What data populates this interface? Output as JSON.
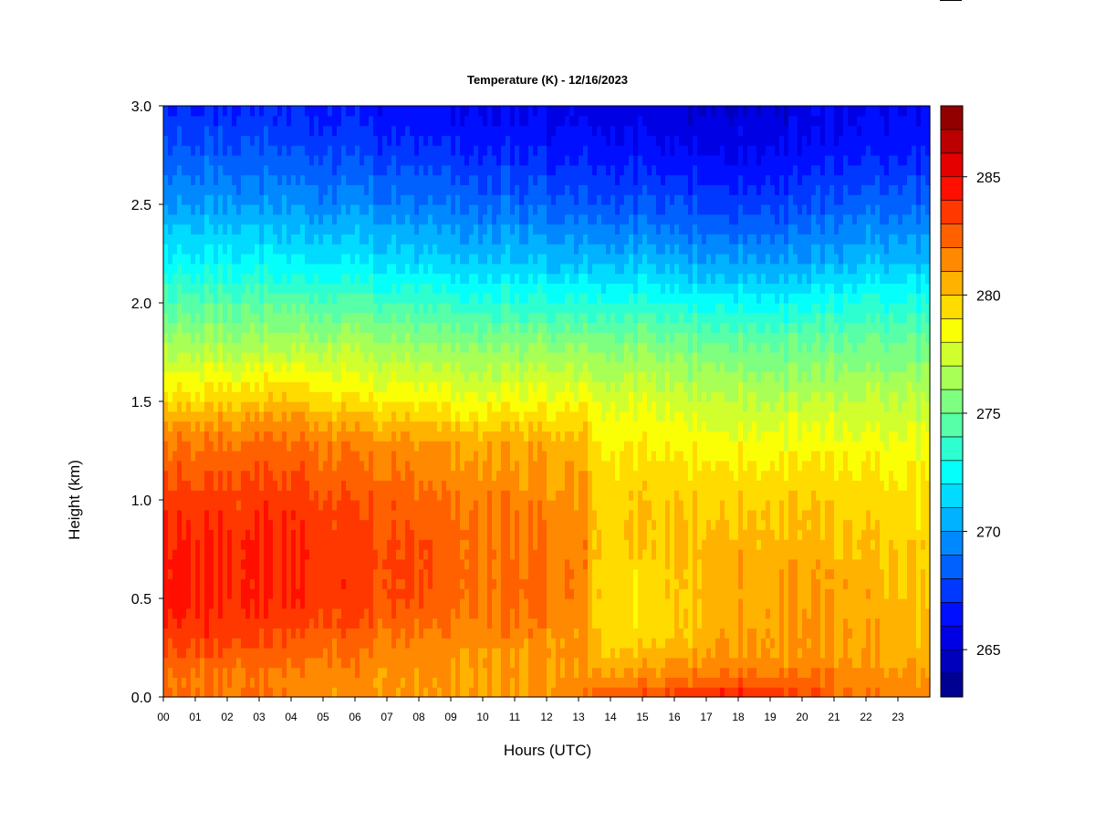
{
  "chart_data": {
    "type": "heatmap",
    "title": "Temperature (K) - 12/16/2023",
    "xlabel": "Hours (UTC)",
    "ylabel": "Height (km)",
    "x_ticks": [
      "00",
      "01",
      "02",
      "03",
      "04",
      "05",
      "06",
      "07",
      "08",
      "09",
      "10",
      "11",
      "12",
      "13",
      "14",
      "15",
      "16",
      "17",
      "18",
      "19",
      "20",
      "21",
      "22",
      "23"
    ],
    "x_range": [
      0,
      24
    ],
    "y_ticks": [
      "0.0",
      "0.5",
      "1.0",
      "1.5",
      "2.0",
      "2.5",
      "3.0"
    ],
    "y_range": [
      0,
      3.0
    ],
    "colorbar": {
      "ticks": [
        "265",
        "270",
        "275",
        "280",
        "285"
      ],
      "tick_values": [
        265,
        270,
        275,
        280,
        285
      ],
      "range": [
        263,
        288
      ],
      "levels": 25
    },
    "colormap": [
      "#00007f",
      "#0000ff",
      "#007fff",
      "#00ffff",
      "#7fff7f",
      "#ffff00",
      "#ff7f00",
      "#ff0000",
      "#7f0000"
    ],
    "grid": false,
    "profiles": [
      {
        "hour": 0,
        "heights": [
          0,
          0.1,
          0.3,
          0.5,
          0.8,
          1.0,
          1.3,
          1.55,
          1.8,
          2.0,
          2.2,
          2.5,
          2.8,
          3.0
        ],
        "values": [
          282.5,
          282.0,
          283.6,
          284.6,
          284.2,
          283.6,
          282.0,
          279.0,
          276.5,
          274.5,
          272.5,
          270.0,
          268.0,
          267.0
        ]
      },
      {
        "hour": 2,
        "heights": [
          0,
          0.1,
          0.3,
          0.5,
          0.8,
          1.0,
          1.3,
          1.55,
          1.8,
          2.0,
          2.2,
          2.5,
          2.8,
          3.0
        ],
        "values": [
          282.0,
          281.8,
          283.4,
          284.0,
          284.0,
          283.4,
          282.0,
          279.2,
          276.5,
          274.5,
          272.5,
          270.0,
          268.0,
          267.0
        ]
      },
      {
        "hour": 4,
        "heights": [
          0,
          0.1,
          0.3,
          0.5,
          0.8,
          1.0,
          1.3,
          1.55,
          1.8,
          2.0,
          2.2,
          2.5,
          2.8,
          3.0
        ],
        "values": [
          281.6,
          281.6,
          283.0,
          284.0,
          284.0,
          283.6,
          282.2,
          279.6,
          276.5,
          274.5,
          272.2,
          269.8,
          267.8,
          266.8
        ]
      },
      {
        "hour": 6,
        "heights": [
          0,
          0.1,
          0.3,
          0.5,
          0.8,
          1.0,
          1.3,
          1.5,
          1.8,
          2.0,
          2.2,
          2.5,
          2.8,
          3.0
        ],
        "values": [
          281.4,
          281.4,
          282.4,
          283.4,
          283.4,
          282.8,
          281.5,
          279.0,
          276.5,
          274.3,
          272.0,
          269.5,
          267.5,
          266.5
        ]
      },
      {
        "hour": 8,
        "heights": [
          0,
          0.1,
          0.3,
          0.5,
          0.8,
          1.0,
          1.3,
          1.5,
          1.8,
          2.0,
          2.2,
          2.5,
          2.8,
          3.0
        ],
        "values": [
          281.0,
          281.0,
          281.8,
          283.0,
          283.0,
          282.4,
          281.2,
          278.8,
          276.0,
          273.8,
          271.6,
          269.2,
          267.2,
          266.2
        ]
      },
      {
        "hour": 10,
        "heights": [
          0,
          0.1,
          0.3,
          0.5,
          0.8,
          1.0,
          1.3,
          1.5,
          1.8,
          2.0,
          2.2,
          2.5,
          2.8,
          3.0
        ],
        "values": [
          281.0,
          281.0,
          281.5,
          282.2,
          282.2,
          281.8,
          280.6,
          278.4,
          275.8,
          273.5,
          271.2,
          268.8,
          266.8,
          266.0
        ]
      },
      {
        "hour": 12,
        "heights": [
          0,
          0.1,
          0.3,
          0.5,
          0.8,
          1.0,
          1.3,
          1.5,
          1.8,
          2.0,
          2.2,
          2.5,
          2.8,
          3.0
        ],
        "values": [
          281.4,
          281.2,
          281.4,
          282.4,
          282.0,
          281.6,
          280.6,
          278.6,
          275.8,
          273.4,
          271.0,
          268.6,
          266.6,
          265.8
        ]
      },
      {
        "hour": 13.3,
        "heights": [
          0,
          0.1,
          0.3,
          0.5,
          0.8,
          1.0,
          1.3,
          1.5,
          1.8,
          2.0,
          2.2,
          2.5,
          2.8,
          3.0
        ],
        "values": [
          282.0,
          281.2,
          281.0,
          281.4,
          281.4,
          281.0,
          280.2,
          278.4,
          275.6,
          273.2,
          270.8,
          268.3,
          266.4,
          265.6
        ]
      },
      {
        "hour": 13.5,
        "heights": [
          0,
          0.05,
          0.2,
          0.5,
          0.8,
          1.0,
          1.3,
          1.5,
          1.8,
          2.0,
          2.2,
          2.5,
          2.8,
          3.0
        ],
        "values": [
          282.6,
          281.6,
          280.0,
          279.6,
          279.8,
          279.6,
          278.8,
          277.6,
          275.4,
          273.0,
          270.6,
          268.0,
          266.2,
          265.4
        ]
      },
      {
        "hour": 15,
        "heights": [
          0,
          0.05,
          0.2,
          0.35,
          0.6,
          0.8,
          1.0,
          1.2,
          1.5,
          1.8,
          2.0,
          2.2,
          2.5,
          2.8,
          3.0
        ],
        "values": [
          283.2,
          282.0,
          280.4,
          279.0,
          279.4,
          279.8,
          279.8,
          279.2,
          277.8,
          275.6,
          273.2,
          270.8,
          268.2,
          266.2,
          265.4
        ]
      },
      {
        "hour": 17.5,
        "heights": [
          0,
          0.05,
          0.2,
          0.5,
          0.8,
          1.0,
          1.2,
          1.5,
          1.8,
          2.0,
          2.2,
          2.5,
          2.8,
          3.0
        ],
        "values": [
          285.0,
          283.0,
          281.2,
          280.6,
          280.4,
          279.8,
          279.0,
          277.2,
          275.0,
          272.6,
          270.2,
          267.6,
          265.6,
          265.0
        ]
      },
      {
        "hour": 20,
        "heights": [
          0,
          0.05,
          0.2,
          0.5,
          0.8,
          1.0,
          1.2,
          1.5,
          1.8,
          2.0,
          2.2,
          2.5,
          2.8,
          3.0
        ],
        "values": [
          283.6,
          282.4,
          281.2,
          281.0,
          280.4,
          279.8,
          279.0,
          277.0,
          274.8,
          272.6,
          270.2,
          267.8,
          266.0,
          265.4
        ]
      },
      {
        "hour": 22,
        "heights": [
          0,
          0.05,
          0.2,
          0.5,
          0.8,
          1.0,
          1.2,
          1.5,
          1.8,
          2.0,
          2.2,
          2.5,
          2.8,
          3.0
        ],
        "values": [
          282.0,
          281.6,
          281.0,
          280.6,
          280.0,
          279.6,
          279.0,
          277.2,
          275.2,
          273.2,
          271.0,
          268.6,
          266.6,
          266.0
        ]
      },
      {
        "hour": 24,
        "heights": [
          0,
          0.05,
          0.2,
          0.5,
          0.8,
          1.0,
          1.2,
          1.5,
          1.8,
          2.0,
          2.2,
          2.5,
          2.8,
          3.0
        ],
        "values": [
          281.8,
          281.4,
          280.4,
          280.0,
          279.6,
          279.2,
          278.6,
          277.0,
          275.0,
          273.2,
          271.0,
          268.6,
          266.6,
          266.0
        ]
      }
    ]
  }
}
